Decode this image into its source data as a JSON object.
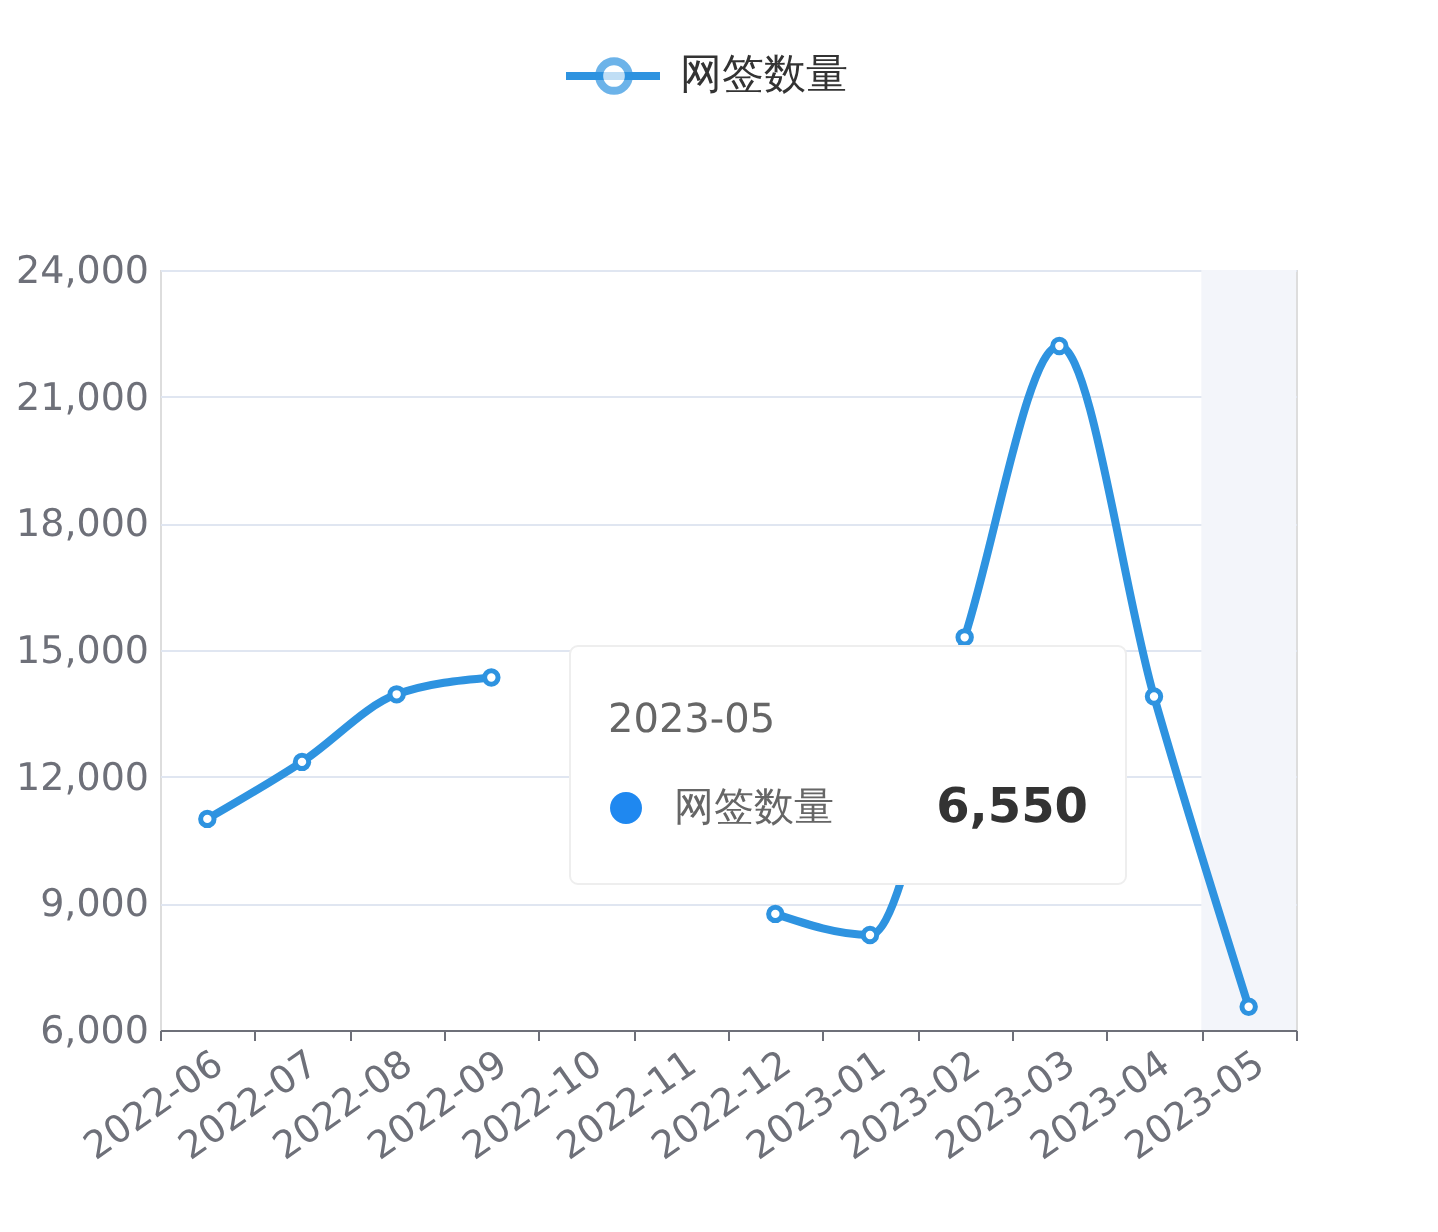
{
  "chart_data": {
    "type": "line",
    "categories": [
      "2022-06",
      "2022-07",
      "2022-08",
      "2022-09",
      "2022-10",
      "2022-11",
      "2022-12",
      "2023-01",
      "2023-02",
      "2023-03",
      "2023-04",
      "2023-05"
    ],
    "series": [
      {
        "name": "网签数量",
        "color": "#2e93e0",
        "values": [
          11000,
          12350,
          13950,
          14350,
          null,
          null,
          8750,
          8250,
          15300,
          22200,
          13900,
          6550
        ]
      }
    ],
    "ylim": [
      6000,
      24000
    ],
    "yticks": [
      {
        "value": 6000,
        "label": "6,000"
      },
      {
        "value": 9000,
        "label": "9,000"
      },
      {
        "value": 12000,
        "label": "12,000"
      },
      {
        "value": 15000,
        "label": "15,000"
      },
      {
        "value": 18000,
        "label": "18,000"
      },
      {
        "value": 21000,
        "label": "21,000"
      },
      {
        "value": 24000,
        "label": "24,000"
      }
    ],
    "grid": "y",
    "legend": "top",
    "marker": "circle",
    "line_style": "solid",
    "bands": [
      {
        "axis": "x",
        "from": "2023-05",
        "to": "2023-05",
        "color": "#f3f5fa"
      }
    ],
    "annotations": [
      "2023-05",
      "网签数量",
      "6,550"
    ]
  }
}
